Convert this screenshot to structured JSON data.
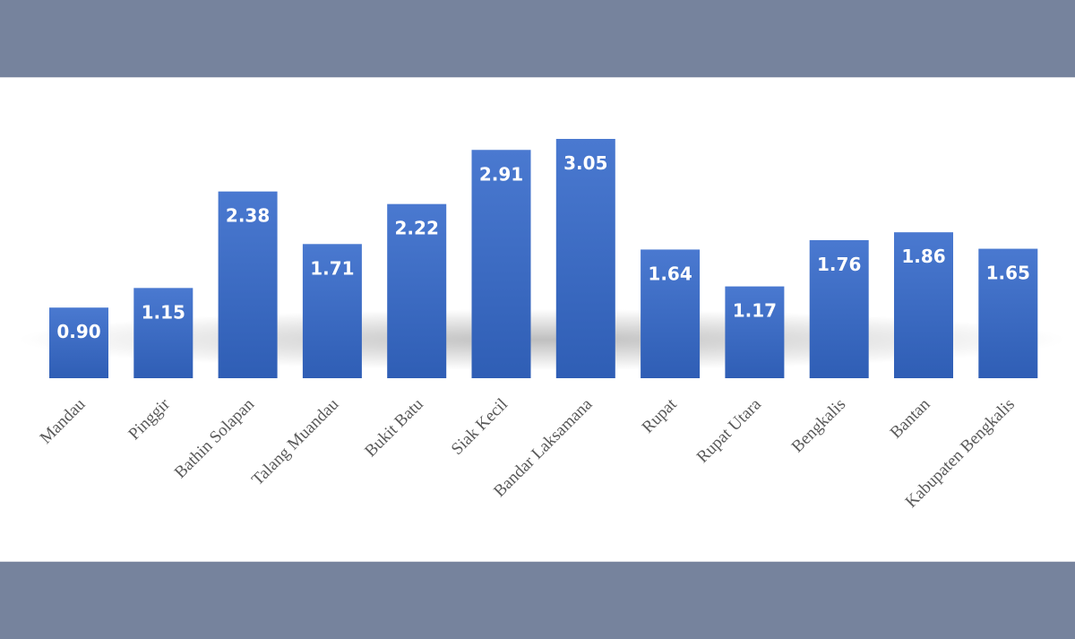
{
  "colors": {
    "background": "#76839d",
    "panel": "#ffffff",
    "bar_top": "#4a79d0",
    "bar_bottom": "#2f5eb5",
    "label": "#ffffff",
    "axis_text": "#595959"
  },
  "chart_data": {
    "type": "bar",
    "title": "",
    "xlabel": "",
    "ylabel": "",
    "categories": [
      "Mandau",
      "Pinggir",
      "Bathin Solapan",
      "Talang Muandau",
      "Bukit Batu",
      "Siak Kecil",
      "Bandar Laksamana",
      "Rupat",
      "Rupat Utara",
      "Bengkalis",
      "Bantan",
      "Kabupaten Bengkalis"
    ],
    "values": [
      0.9,
      1.15,
      2.38,
      1.71,
      2.22,
      2.91,
      3.05,
      1.64,
      1.17,
      1.76,
      1.86,
      1.65
    ],
    "value_labels": [
      "0.90",
      "1.15",
      "2.38",
      "1.71",
      "2.22",
      "2.91",
      "3.05",
      "1.64",
      "1.17",
      "1.76",
      "1.86",
      "1.65"
    ],
    "ylim": [
      0,
      3.05
    ],
    "grid": false,
    "legend": "none"
  }
}
